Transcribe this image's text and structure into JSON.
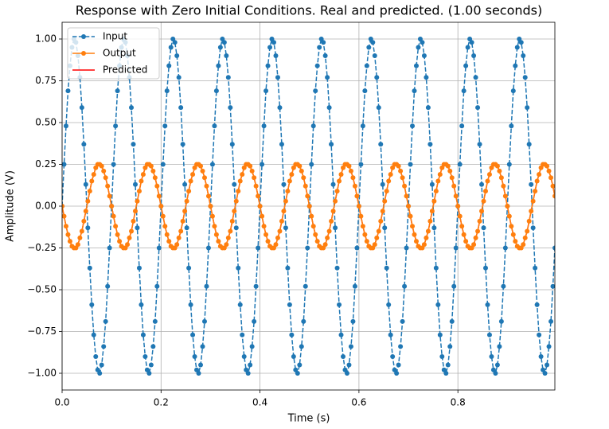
{
  "chart_data": {
    "type": "line",
    "title": "Response with Zero Initial Conditions. Real and predicted. (1.00 seconds)",
    "xlabel": "Time (s)",
    "ylabel": "Amplitude (V)",
    "x": [
      0,
      0.004,
      0.008,
      0.012,
      0.016,
      0.02,
      0.024,
      0.028,
      0.032,
      0.036,
      0.04,
      0.044,
      0.048,
      0.052,
      0.056,
      0.06,
      0.064,
      0.068,
      0.072,
      0.076,
      0.08,
      0.084,
      0.088,
      0.092,
      0.096,
      0.1,
      0.104,
      0.108,
      0.112,
      0.116,
      0.12,
      0.124,
      0.128,
      0.132,
      0.136,
      0.14,
      0.144,
      0.148,
      0.152,
      0.156,
      0.16,
      0.164,
      0.168,
      0.172,
      0.176,
      0.18,
      0.184,
      0.188,
      0.192,
      0.196,
      0.2,
      0.204,
      0.208,
      0.212,
      0.216,
      0.22,
      0.224,
      0.228,
      0.232,
      0.236,
      0.24,
      0.244,
      0.248,
      0.252,
      0.256,
      0.26,
      0.264,
      0.268,
      0.272,
      0.276,
      0.28,
      0.284,
      0.288,
      0.292,
      0.296,
      0.3,
      0.304,
      0.308,
      0.312,
      0.316,
      0.32,
      0.324,
      0.328,
      0.332,
      0.336,
      0.34,
      0.344,
      0.348,
      0.352,
      0.356,
      0.36,
      0.364,
      0.368,
      0.372,
      0.376,
      0.38,
      0.384,
      0.388,
      0.392,
      0.396,
      0.4,
      0.404,
      0.408,
      0.412,
      0.416,
      0.42,
      0.424,
      0.428,
      0.432,
      0.436,
      0.44,
      0.444,
      0.448,
      0.452,
      0.456,
      0.46,
      0.464,
      0.468,
      0.472,
      0.476,
      0.48,
      0.484,
      0.488,
      0.492,
      0.496,
      0.5,
      0.504,
      0.508,
      0.512,
      0.516,
      0.52,
      0.524,
      0.528,
      0.532,
      0.536,
      0.54,
      0.544,
      0.548,
      0.552,
      0.556,
      0.56,
      0.564,
      0.568,
      0.572,
      0.576,
      0.58,
      0.584,
      0.588,
      0.592,
      0.596,
      0.6,
      0.604,
      0.608,
      0.612,
      0.616,
      0.62,
      0.624,
      0.628,
      0.632,
      0.636,
      0.64,
      0.644,
      0.648,
      0.652,
      0.656,
      0.66,
      0.664,
      0.668,
      0.672,
      0.676,
      0.68,
      0.684,
      0.688,
      0.692,
      0.696,
      0.7,
      0.704,
      0.708,
      0.712,
      0.716,
      0.72,
      0.724,
      0.728,
      0.732,
      0.736,
      0.74,
      0.744,
      0.748,
      0.752,
      0.756,
      0.76,
      0.764,
      0.768,
      0.772,
      0.776,
      0.78,
      0.784,
      0.788,
      0.792,
      0.796,
      0.8,
      0.804,
      0.808,
      0.812,
      0.816,
      0.82,
      0.824,
      0.828,
      0.832,
      0.836,
      0.84,
      0.844,
      0.848,
      0.852,
      0.856,
      0.86,
      0.864,
      0.868,
      0.872,
      0.876,
      0.88,
      0.884,
      0.888,
      0.892,
      0.896,
      0.9,
      0.904,
      0.908,
      0.912,
      0.916,
      0.92,
      0.924,
      0.928,
      0.932,
      0.936,
      0.94,
      0.944,
      0.948,
      0.952,
      0.956,
      0.96,
      0.964,
      0.968,
      0.972,
      0.976,
      0.98,
      0.984,
      0.988,
      0.992,
      0.996
    ],
    "series": [
      {
        "name": "Input",
        "color": "#1f77b4",
        "dashed": true,
        "markers": true,
        "values": [
          0,
          0.25,
          0.48,
          0.69,
          0.84,
          0.95,
          1.0,
          0.98,
          0.9,
          0.77,
          0.59,
          0.37,
          0.13,
          -0.13,
          -0.37,
          -0.59,
          -0.77,
          -0.9,
          -0.98,
          -1.0,
          -0.95,
          -0.84,
          -0.69,
          -0.48,
          -0.25,
          0,
          0.25,
          0.48,
          0.69,
          0.84,
          0.95,
          1.0,
          0.98,
          0.9,
          0.77,
          0.59,
          0.37,
          0.13,
          -0.13,
          -0.37,
          -0.59,
          -0.77,
          -0.9,
          -0.98,
          -1.0,
          -0.95,
          -0.84,
          -0.69,
          -0.48,
          -0.25,
          0,
          0.25,
          0.48,
          0.69,
          0.84,
          0.95,
          1.0,
          0.98,
          0.9,
          0.77,
          0.59,
          0.37,
          0.13,
          -0.13,
          -0.37,
          -0.59,
          -0.77,
          -0.9,
          -0.98,
          -1.0,
          -0.95,
          -0.84,
          -0.69,
          -0.48,
          -0.25,
          0,
          0.25,
          0.48,
          0.69,
          0.84,
          0.95,
          1.0,
          0.98,
          0.9,
          0.77,
          0.59,
          0.37,
          0.13,
          -0.13,
          -0.37,
          -0.59,
          -0.77,
          -0.9,
          -0.98,
          -1.0,
          -0.95,
          -0.84,
          -0.69,
          -0.48,
          -0.25,
          0,
          0.25,
          0.48,
          0.69,
          0.84,
          0.95,
          1.0,
          0.98,
          0.9,
          0.77,
          0.59,
          0.37,
          0.13,
          -0.13,
          -0.37,
          -0.59,
          -0.77,
          -0.9,
          -0.98,
          -1.0,
          -0.95,
          -0.84,
          -0.69,
          -0.48,
          -0.25,
          0,
          0.25,
          0.48,
          0.69,
          0.84,
          0.95,
          1.0,
          0.98,
          0.9,
          0.77,
          0.59,
          0.37,
          0.13,
          -0.13,
          -0.37,
          -0.59,
          -0.77,
          -0.9,
          -0.98,
          -1.0,
          -0.95,
          -0.84,
          -0.69,
          -0.48,
          -0.25,
          0,
          0.25,
          0.48,
          0.69,
          0.84,
          0.95,
          1.0,
          0.98,
          0.9,
          0.77,
          0.59,
          0.37,
          0.13,
          -0.13,
          -0.37,
          -0.59,
          -0.77,
          -0.9,
          -0.98,
          -1.0,
          -0.95,
          -0.84,
          -0.69,
          -0.48,
          -0.25,
          0,
          0.25,
          0.48,
          0.69,
          0.84,
          0.95,
          1.0,
          0.98,
          0.9,
          0.77,
          0.59,
          0.37,
          0.13,
          -0.13,
          -0.37,
          -0.59,
          -0.77,
          -0.9,
          -0.98,
          -1.0,
          -0.95,
          -0.84,
          -0.69,
          -0.48,
          -0.25,
          0,
          0.25,
          0.48,
          0.69,
          0.84,
          0.95,
          1.0,
          0.98,
          0.9,
          0.77,
          0.59,
          0.37,
          0.13,
          -0.13,
          -0.37,
          -0.59,
          -0.77,
          -0.9,
          -0.98,
          -1.0,
          -0.95,
          -0.84,
          -0.69,
          -0.48,
          -0.25,
          0,
          0.25,
          0.48,
          0.69,
          0.84,
          0.95,
          1.0,
          0.98,
          0.9,
          0.77,
          0.59,
          0.37,
          0.13,
          -0.13,
          -0.37,
          -0.59,
          -0.77,
          -0.9,
          -0.98,
          -1.0,
          -0.95,
          -0.84,
          -0.69,
          -0.48,
          -0.25
        ]
      },
      {
        "name": "Output",
        "color": "#ff7f0e",
        "dashed": false,
        "markers": true,
        "values": [
          0,
          -0.06,
          -0.12,
          -0.17,
          -0.21,
          -0.24,
          -0.25,
          -0.25,
          -0.23,
          -0.19,
          -0.15,
          -0.09,
          -0.03,
          0.03,
          0.09,
          0.15,
          0.19,
          0.23,
          0.25,
          0.25,
          0.24,
          0.21,
          0.17,
          0.12,
          0.06,
          0,
          -0.06,
          -0.12,
          -0.17,
          -0.21,
          -0.24,
          -0.25,
          -0.25,
          -0.23,
          -0.19,
          -0.15,
          -0.09,
          -0.03,
          0.03,
          0.09,
          0.15,
          0.19,
          0.23,
          0.25,
          0.25,
          0.24,
          0.21,
          0.17,
          0.12,
          0.06,
          0,
          -0.06,
          -0.12,
          -0.17,
          -0.21,
          -0.24,
          -0.25,
          -0.25,
          -0.23,
          -0.19,
          -0.15,
          -0.09,
          -0.03,
          0.03,
          0.09,
          0.15,
          0.19,
          0.23,
          0.25,
          0.25,
          0.24,
          0.21,
          0.17,
          0.12,
          0.06,
          0,
          -0.06,
          -0.12,
          -0.17,
          -0.21,
          -0.24,
          -0.25,
          -0.25,
          -0.23,
          -0.19,
          -0.15,
          -0.09,
          -0.03,
          0.03,
          0.09,
          0.15,
          0.19,
          0.23,
          0.25,
          0.25,
          0.24,
          0.21,
          0.17,
          0.12,
          0.06,
          0,
          -0.06,
          -0.12,
          -0.17,
          -0.21,
          -0.24,
          -0.25,
          -0.25,
          -0.23,
          -0.19,
          -0.15,
          -0.09,
          -0.03,
          0.03,
          0.09,
          0.15,
          0.19,
          0.23,
          0.25,
          0.25,
          0.24,
          0.21,
          0.17,
          0.12,
          0.06,
          0,
          -0.06,
          -0.12,
          -0.17,
          -0.21,
          -0.24,
          -0.25,
          -0.25,
          -0.23,
          -0.19,
          -0.15,
          -0.09,
          -0.03,
          0.03,
          0.09,
          0.15,
          0.19,
          0.23,
          0.25,
          0.25,
          0.24,
          0.21,
          0.17,
          0.12,
          0.06,
          0,
          -0.06,
          -0.12,
          -0.17,
          -0.21,
          -0.24,
          -0.25,
          -0.25,
          -0.23,
          -0.19,
          -0.15,
          -0.09,
          -0.03,
          0.03,
          0.09,
          0.15,
          0.19,
          0.23,
          0.25,
          0.25,
          0.24,
          0.21,
          0.17,
          0.12,
          0.06,
          0,
          -0.06,
          -0.12,
          -0.17,
          -0.21,
          -0.24,
          -0.25,
          -0.25,
          -0.23,
          -0.19,
          -0.15,
          -0.09,
          -0.03,
          0.03,
          0.09,
          0.15,
          0.19,
          0.23,
          0.25,
          0.25,
          0.24,
          0.21,
          0.17,
          0.12,
          0.06,
          0,
          -0.06,
          -0.12,
          -0.17,
          -0.21,
          -0.24,
          -0.25,
          -0.25,
          -0.23,
          -0.19,
          -0.15,
          -0.09,
          -0.03,
          0.03,
          0.09,
          0.15,
          0.19,
          0.23,
          0.25,
          0.25,
          0.24,
          0.21,
          0.17,
          0.12,
          0.06,
          0,
          -0.06,
          -0.12,
          -0.17,
          -0.21,
          -0.24,
          -0.25,
          -0.25,
          -0.23,
          -0.19,
          -0.15,
          -0.09,
          -0.03,
          0.03,
          0.09,
          0.15,
          0.19,
          0.23,
          0.25,
          0.25,
          0.24,
          0.21,
          0.17,
          0.12,
          0.06
        ]
      },
      {
        "name": "Predicted",
        "color": "#ff0000",
        "dashed": false,
        "markers": false,
        "values": [
          0,
          -0.06,
          -0.12,
          -0.17,
          -0.21,
          -0.24,
          -0.25,
          -0.25,
          -0.23,
          -0.19,
          -0.15,
          -0.09,
          -0.03,
          0.03,
          0.09,
          0.15,
          0.19,
          0.23,
          0.25,
          0.25,
          0.24,
          0.21,
          0.17,
          0.12,
          0.06,
          0,
          -0.06,
          -0.12,
          -0.17,
          -0.21,
          -0.24,
          -0.25,
          -0.25,
          -0.23,
          -0.19,
          -0.15,
          -0.09,
          -0.03,
          0.03,
          0.09,
          0.15,
          0.19,
          0.23,
          0.25,
          0.25,
          0.24,
          0.21,
          0.17,
          0.12,
          0.06,
          0,
          -0.06,
          -0.12,
          -0.17,
          -0.21,
          -0.24,
          -0.25,
          -0.25,
          -0.23,
          -0.19,
          -0.15,
          -0.09,
          -0.03,
          0.03,
          0.09,
          0.15,
          0.19,
          0.23,
          0.25,
          0.25,
          0.24,
          0.21,
          0.17,
          0.12,
          0.06,
          0,
          -0.06,
          -0.12,
          -0.17,
          -0.21,
          -0.24,
          -0.25,
          -0.25,
          -0.23,
          -0.19,
          -0.15,
          -0.09,
          -0.03,
          0.03,
          0.09,
          0.15,
          0.19,
          0.23,
          0.25,
          0.25,
          0.24,
          0.21,
          0.17,
          0.12,
          0.06,
          0,
          -0.06,
          -0.12,
          -0.17,
          -0.21,
          -0.24,
          -0.25,
          -0.25,
          -0.23,
          -0.19,
          -0.15,
          -0.09,
          -0.03,
          0.03,
          0.09,
          0.15,
          0.19,
          0.23,
          0.25,
          0.25,
          0.24,
          0.21,
          0.17,
          0.12,
          0.06,
          0,
          -0.06,
          -0.12,
          -0.17,
          -0.21,
          -0.24,
          -0.25,
          -0.25,
          -0.23,
          -0.19,
          -0.15,
          -0.09,
          -0.03,
          0.03,
          0.09,
          0.15,
          0.19,
          0.23,
          0.25,
          0.25,
          0.24,
          0.21,
          0.17,
          0.12,
          0.06,
          0,
          -0.06,
          -0.12,
          -0.17,
          -0.21,
          -0.24,
          -0.25,
          -0.25,
          -0.23,
          -0.19,
          -0.15,
          -0.09,
          -0.03,
          0.03,
          0.09,
          0.15,
          0.19,
          0.23,
          0.25,
          0.25,
          0.24,
          0.21,
          0.17,
          0.12,
          0.06,
          0,
          -0.06,
          -0.12,
          -0.17,
          -0.21,
          -0.24,
          -0.25,
          -0.25,
          -0.23,
          -0.19,
          -0.15,
          -0.09,
          -0.03,
          0.03,
          0.09,
          0.15,
          0.19,
          0.23,
          0.25,
          0.25,
          0.24,
          0.21,
          0.17,
          0.12,
          0.06,
          0,
          -0.06,
          -0.12,
          -0.17,
          -0.21,
          -0.24,
          -0.25,
          -0.25,
          -0.23,
          -0.19,
          -0.15,
          -0.09,
          -0.03,
          0.03,
          0.09,
          0.15,
          0.19,
          0.23,
          0.25,
          0.25,
          0.24,
          0.21,
          0.17,
          0.12,
          0.06,
          0,
          -0.06,
          -0.12,
          -0.17,
          -0.21,
          -0.24,
          -0.25,
          -0.25,
          -0.23,
          -0.19,
          -0.15,
          -0.09,
          -0.03,
          0.03,
          0.09,
          0.15,
          0.19,
          0.23,
          0.25,
          0.25,
          0.24,
          0.21,
          0.17,
          0.12,
          0.06
        ]
      }
    ],
    "xlim": [
      0,
      0.996
    ],
    "xticks": [
      {
        "value": 0,
        "label": "0.0"
      },
      0.2,
      0.4,
      0.6,
      0.8
    ],
    "ylim": [
      -1.1,
      1.1
    ],
    "yticks": [
      {
        "value": -1,
        "label": "−1.00"
      },
      {
        "value": -0.75,
        "label": "−0.75"
      },
      {
        "value": -0.5,
        "label": "−0.50"
      },
      {
        "value": -0.25,
        "label": "−0.25"
      },
      {
        "value": 0,
        "label": "0.00"
      },
      {
        "value": 0.25,
        "label": "0.25"
      },
      {
        "value": 0.5,
        "label": "0.50"
      },
      {
        "value": 0.75,
        "label": "0.75"
      },
      {
        "value": 1,
        "label": "1.00"
      }
    ],
    "grid": true,
    "legend": "upper-left"
  }
}
